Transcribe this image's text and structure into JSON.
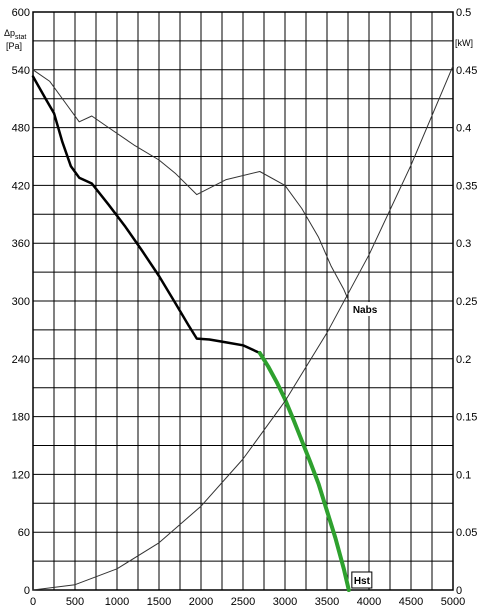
{
  "chart_data": {
    "type": "line",
    "x_ticks": [
      "0",
      "500",
      "1000",
      "1500",
      "2000",
      "2500",
      "3000",
      "3500",
      "4000",
      "4500",
      "5000"
    ],
    "xlim": [
      0,
      5000
    ],
    "y_left": {
      "label_symbol": "Δp",
      "label_sub": "stat",
      "unit": "[Pa]",
      "lim": [
        0,
        600
      ],
      "ticks": [
        "0",
        "60",
        "120",
        "180",
        "240",
        "300",
        "360",
        "420",
        "480",
        "540",
        "600"
      ]
    },
    "y_right": {
      "unit": "[kW]",
      "lim": [
        0,
        0.5
      ],
      "ticks": [
        "0",
        "0.05",
        "0.1",
        "0.15",
        "0.2",
        "0.25",
        "0.3",
        "0.35",
        "0.4",
        "0.45",
        "0.5"
      ]
    },
    "grid": true,
    "colors": {
      "pressure": "#000000",
      "operating": "#2ea12e",
      "power": "#333333",
      "system": "#333333",
      "grid": "#000000"
    },
    "series": [
      {
        "name": "pressure-curve",
        "axis": "left",
        "x": [
          0,
          150,
          250,
          350,
          450,
          550,
          700,
          900,
          1100,
          1300,
          1500,
          1700,
          1850,
          1950,
          2100,
          2300,
          2500,
          2700
        ],
        "values": [
          533,
          510,
          495,
          465,
          440,
          428,
          422,
          400,
          377,
          352,
          326,
          297,
          275,
          261,
          260,
          257,
          254,
          246
        ]
      },
      {
        "name": "operating-range",
        "label": "Hst",
        "axis": "left",
        "x": [
          2700,
          2800,
          2900,
          3000,
          3100,
          3200,
          3300,
          3400,
          3500,
          3600,
          3700,
          3760
        ],
        "values": [
          246,
          232,
          216,
          198,
          177,
          155,
          133,
          110,
          82,
          54,
          22,
          0
        ]
      },
      {
        "name": "power-curve",
        "label": "Nabs",
        "axis": "right",
        "x": [
          0,
          200,
          400,
          550,
          700,
          900,
          1200,
          1500,
          1700,
          1950,
          2300,
          2700,
          3000,
          3200,
          3400,
          3550,
          3700,
          3760
        ],
        "values": [
          0.45,
          0.44,
          0.42,
          0.405,
          0.41,
          0.4,
          0.385,
          0.372,
          0.36,
          0.342,
          0.355,
          0.362,
          0.35,
          0.33,
          0.305,
          0.28,
          0.26,
          0.25
        ]
      },
      {
        "name": "system-curve",
        "axis": "left",
        "x": [
          0,
          500,
          1000,
          1500,
          2000,
          2500,
          3000,
          3500,
          4000,
          4500,
          5000
        ],
        "values": [
          0,
          5.5,
          22,
          49,
          87,
          136,
          196,
          267,
          348,
          441,
          544
        ]
      }
    ]
  }
}
